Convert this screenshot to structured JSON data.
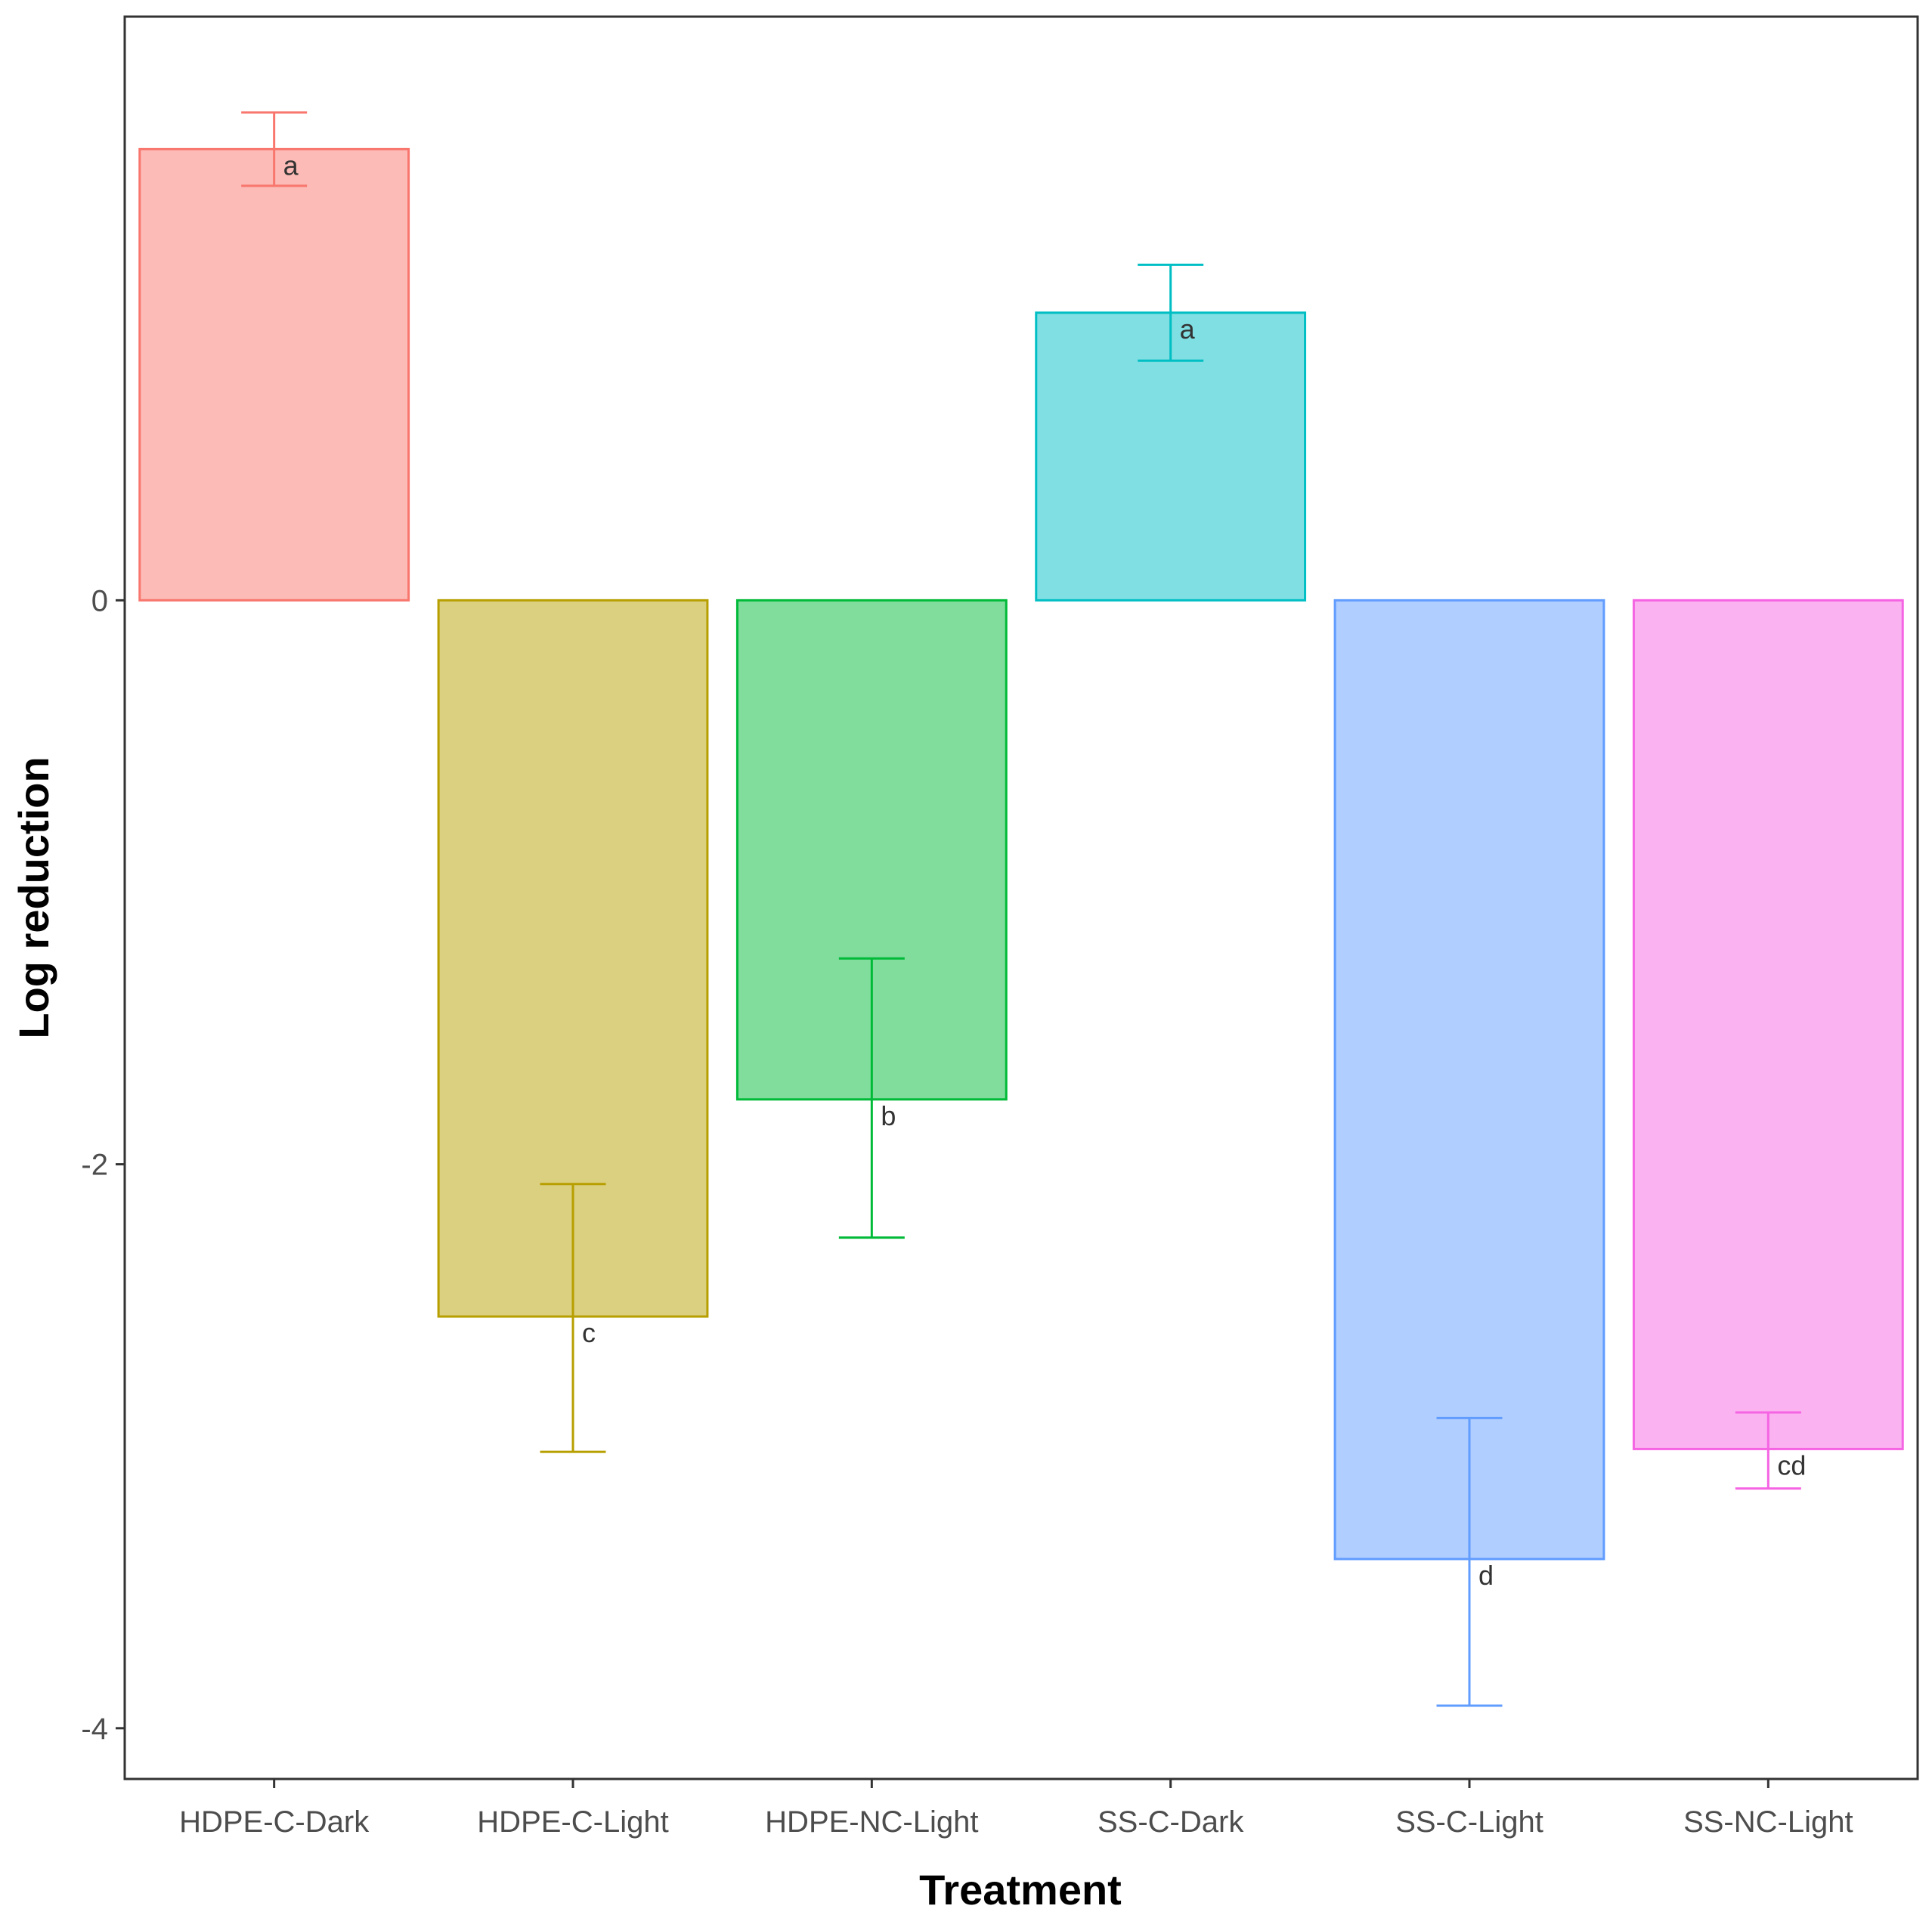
{
  "chart_data": {
    "type": "bar",
    "title": "",
    "xlabel": "Treatment",
    "ylabel": "Log reduction",
    "ylim": [
      -4.18,
      2.07
    ],
    "yticks": [
      0,
      -2,
      -4
    ],
    "ytick_labels": [
      "0",
      "-2",
      "-4"
    ],
    "grid": false,
    "legend": "none",
    "categories": [
      "HDPE-C-Dark",
      "HDPE-C-Light",
      "HDPE-NC-Light",
      "SS-C-Dark",
      "SS-C-Light",
      "SS-NC-Light"
    ],
    "values": [
      1.6,
      -2.54,
      -1.77,
      1.02,
      -3.4,
      -3.01
    ],
    "error_low": [
      1.47,
      -3.02,
      -2.26,
      0.85,
      -3.92,
      -3.15
    ],
    "error_high": [
      1.73,
      -2.07,
      -1.27,
      1.19,
      -2.9,
      -2.88
    ],
    "significance_labels": [
      "a",
      "c",
      "b",
      "a",
      "d",
      "cd"
    ],
    "colors": [
      "#F8766D",
      "#B79F00",
      "#00BA38",
      "#00BFC4",
      "#619CFF",
      "#F564E3"
    ]
  }
}
